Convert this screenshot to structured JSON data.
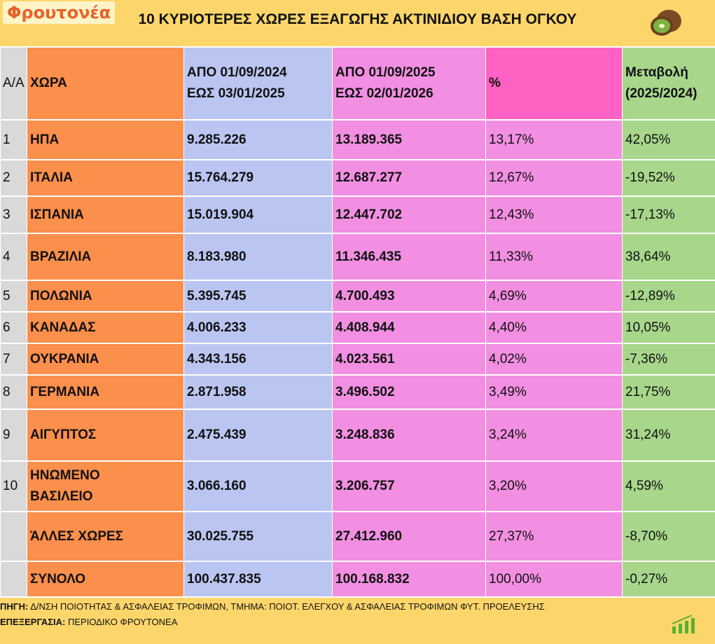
{
  "header": {
    "logo": "Φρουτονέα",
    "title": "10 ΚΥΡΙΟΤΕΡΕΣ ΧΩΡΕΣ ΕΞΑΓΩΓΗΣ ΑΚΤΙΝΙΔΙΟΥ ΒΑΣΗ ΟΓΚΟΥ"
  },
  "table": {
    "columns": [
      "Α/Α",
      "ΧΩΡΑ",
      "ΑΠΟ 01/09/2024\nΕΩΣ  03/01/2025",
      "ΑΠΟ 01/09/2025\nΕΩΣ  02/01/2026",
      "%",
      "Μεταβολή\n(2025/2024)"
    ],
    "rows": [
      [
        "1",
        "ΗΠΑ",
        "9.285.226",
        "13.189.365",
        "13,17%",
        "42,05%"
      ],
      [
        "2",
        "ΙΤΑΛΙΑ",
        "15.764.279",
        "12.687.277",
        "12,67%",
        "-19,52%"
      ],
      [
        "3",
        "ΙΣΠΑΝΙΑ",
        "15.019.904",
        "12.447.702",
        "12,43%",
        "-17,13%"
      ],
      [
        "4",
        "ΒΡΑΖΙΛΙΑ",
        "8.183.980",
        "11.346.435",
        "11,33%",
        "38,64%"
      ],
      [
        "5",
        "ΠΟΛΩΝΙΑ",
        "5.395.745",
        "4.700.493",
        "4,69%",
        "-12,89%"
      ],
      [
        "6",
        "ΚΑΝΑΔΑΣ",
        "4.006.233",
        "4.408.944",
        "4,40%",
        "10,05%"
      ],
      [
        "7",
        "ΟΥΚΡΑΝΙΑ",
        "4.343.156",
        "4.023.561",
        "4,02%",
        "-7,36%"
      ],
      [
        "8",
        "ΓΕΡΜΑΝΙΑ",
        "2.871.958",
        "3.496.502",
        "3,49%",
        "21,75%"
      ],
      [
        "9",
        "ΑΙΓΥΠΤΟΣ",
        "2.475.439",
        "3.248.836",
        "3,24%",
        "31,24%"
      ],
      [
        "10",
        "ΗΝΩΜΕΝΟ\nΒΑΣΙΛΕΙΟ",
        "3.066.160",
        "3.206.757",
        "3,20%",
        "4,59%"
      ],
      [
        null,
        "ΆΛΛΕΣ ΧΩΡΕΣ",
        "30.025.755",
        "27.412.960",
        "27,37%",
        "-8,70%"
      ],
      [
        null,
        "ΣΥΝΟΛΟ",
        "100.437.835",
        "100.168.832",
        "100,00%",
        "-0,27%"
      ]
    ]
  },
  "footer": {
    "source_label": "ΠΗΓΗ:",
    "source": " Δ/ΝΣΗ ΠΟΙΟΤΗΤΑΣ & ΑΣΦΑΛΕΙΑΣ ΤΡΟΦΙΜΩΝ, ΤΜΗΜΑ: ΠΟΙΟΤ. ΕΛΕΓΧΟΥ & ΑΣΦΑΛΕΙΑΣ ΤΡΟΦΙΜΩΝ ΦΥΤ. ΠΡΟΕΛΕΥΣΗΣ",
    "processing_label": "ΕΠΕΞΕΡΓΑΣΙΑ:",
    "processing": " ΠΕΡΙΟΔΙΚΟ ΦΡΟΥΤΟΝΕΑ"
  }
}
